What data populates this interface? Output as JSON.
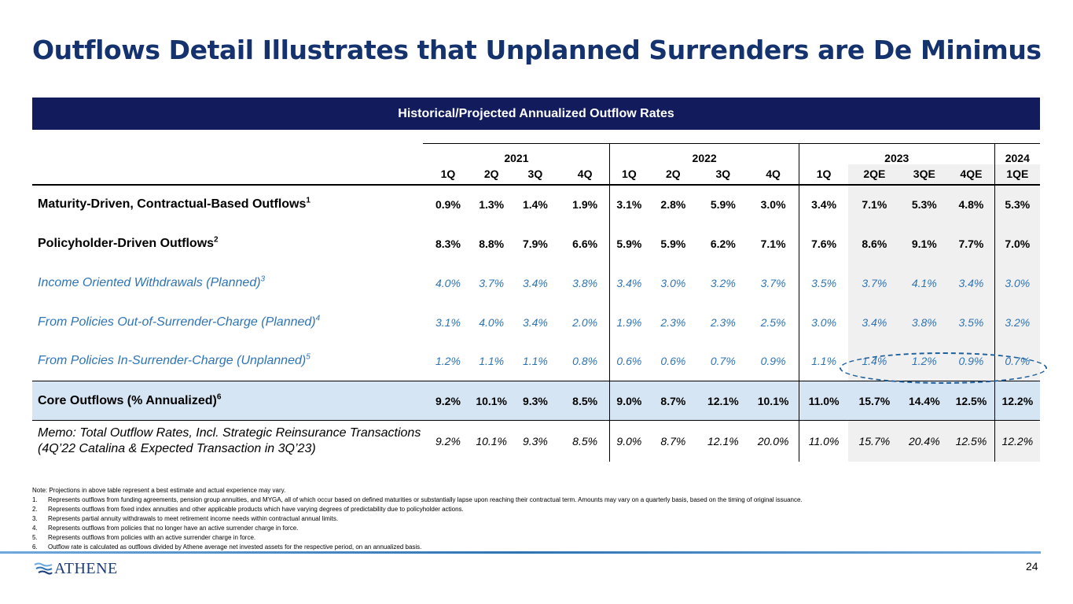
{
  "title": "Outflows Detail Illustrates that Unplanned Surrenders are De Minimus",
  "banner": "Historical/Projected Annualized Outflow Rates",
  "years": [
    "2021",
    "2022",
    "2023",
    "2024"
  ],
  "quarters": [
    "1Q",
    "2Q",
    "3Q",
    "4Q",
    "1Q",
    "2Q",
    "3Q",
    "4Q",
    "1Q",
    "2QE",
    "3QE",
    "4QE",
    "1QE"
  ],
  "rows": [
    {
      "label": "Maturity-Driven, Contractual-Based Outflows",
      "sup": "1",
      "values": [
        "0.9%",
        "1.3%",
        "1.4%",
        "1.9%",
        "3.1%",
        "2.8%",
        "5.9%",
        "3.0%",
        "3.4%",
        "7.1%",
        "5.3%",
        "4.8%",
        "5.3%"
      ]
    },
    {
      "label": "Policyholder-Driven Outflows",
      "sup": "2",
      "values": [
        "8.3%",
        "8.8%",
        "7.9%",
        "6.6%",
        "5.9%",
        "5.9%",
        "6.2%",
        "7.1%",
        "7.6%",
        "8.6%",
        "9.1%",
        "7.7%",
        "7.0%"
      ]
    },
    {
      "label": "Income Oriented Withdrawals (Planned)",
      "sup": "3",
      "values": [
        "4.0%",
        "3.7%",
        "3.4%",
        "3.8%",
        "3.4%",
        "3.0%",
        "3.2%",
        "3.7%",
        "3.5%",
        "3.7%",
        "4.1%",
        "3.4%",
        "3.0%"
      ]
    },
    {
      "label": "From Policies Out-of-Surrender-Charge (Planned)",
      "sup": "4",
      "values": [
        "3.1%",
        "4.0%",
        "3.4%",
        "2.0%",
        "1.9%",
        "2.3%",
        "2.3%",
        "2.5%",
        "3.0%",
        "3.4%",
        "3.8%",
        "3.5%",
        "3.2%"
      ]
    },
    {
      "label": "From Policies In-Surrender-Charge (Unplanned)",
      "sup": "5",
      "values": [
        "1.2%",
        "1.1%",
        "1.1%",
        "0.8%",
        "0.6%",
        "0.6%",
        "0.7%",
        "0.9%",
        "1.1%",
        "1.4%",
        "1.2%",
        "0.9%",
        "0.7%"
      ]
    },
    {
      "label": "Core Outflows (% Annualized)",
      "sup": "6",
      "values": [
        "9.2%",
        "10.1%",
        "9.3%",
        "8.5%",
        "9.0%",
        "8.7%",
        "12.1%",
        "10.1%",
        "11.0%",
        "15.7%",
        "14.4%",
        "12.5%",
        "12.2%"
      ]
    },
    {
      "label_line1": "Memo: Total Outflow Rates, Incl. Strategic Reinsurance Transactions",
      "label_line2": "(4Q’22 Catalina & Expected Transaction in 3Q’23)",
      "values": [
        "9.2%",
        "10.1%",
        "9.3%",
        "8.5%",
        "9.0%",
        "8.7%",
        "12.1%",
        "20.0%",
        "11.0%",
        "15.7%",
        "20.4%",
        "12.5%",
        "12.2%"
      ]
    }
  ],
  "notes": {
    "intro": "Note: Projections in above table represent a best estimate and actual experience may vary.",
    "items": [
      {
        "num": "1.",
        "text": "Represents outflows from funding agreements, pension group annuities, and MYGA, all of which occur based on defined maturities or substantially lapse upon reaching their contractual term. Amounts may vary on a quarterly basis, based on the timing of original issuance."
      },
      {
        "num": "2.",
        "text": "Represents outflows from fixed index annuities and other applicable products which have varying degrees of predictability due to policyholder actions."
      },
      {
        "num": "3.",
        "text": "Represents partial annuity withdrawals to meet retirement income needs within contractual annual limits."
      },
      {
        "num": "4.",
        "text": "Represents outflows from policies that no longer have an active surrender charge in force."
      },
      {
        "num": "5.",
        "text": "Represents outflows from policies with an active surrender charge in force."
      },
      {
        "num": "6.",
        "text": "Outflow rate is calculated as outflows divided by Athene average net invested assets for the respective period, on an annualized basis."
      }
    ]
  },
  "logo_text": "ATHENE",
  "page_number": "24",
  "colors": {
    "title": "#14326e",
    "banner": "#121c5c",
    "italic_text": "#2e74b5",
    "core_fill": "#d6e5f3",
    "projection_fill": "#f0f0f0"
  }
}
